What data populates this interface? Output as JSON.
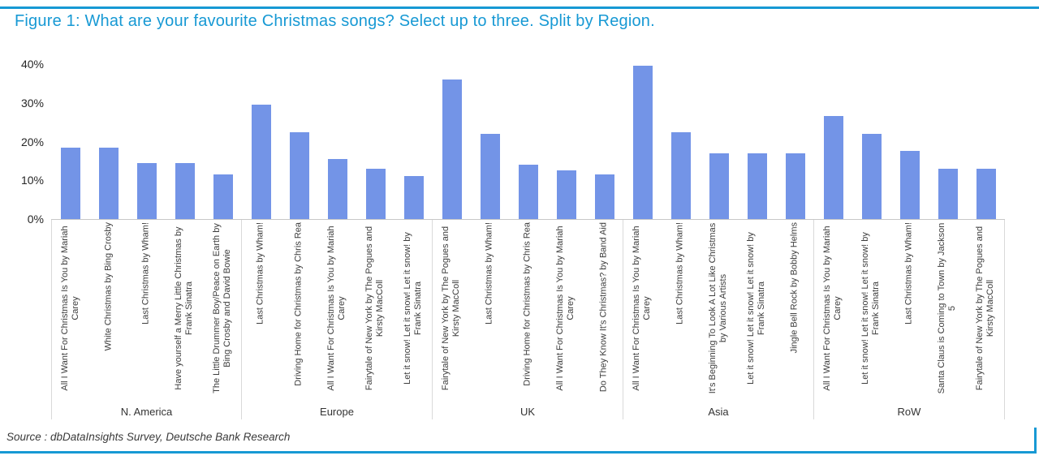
{
  "header": {
    "title": "Figure 1: What are your favourite Christmas songs? Select up to three. Split by Region."
  },
  "footer": {
    "source": "Source : dbDataInsights Survey, Deutsche Bank Research"
  },
  "colors": {
    "accent_blue": "#1799d4",
    "bar_fill": "#7394e7",
    "separator_gray": "#d9d9d9",
    "baseline_gray": "#c8c8c8",
    "text_dark": "#262626"
  },
  "chart_data": {
    "type": "bar",
    "title": "What are your favourite Christmas songs? Select up to three. Split by Region.",
    "xlabel": "",
    "ylabel": "",
    "unit": "%",
    "ylim": [
      0,
      40
    ],
    "yticks": [
      40,
      30,
      20,
      10,
      0
    ],
    "grid": false,
    "legend": null,
    "groups": [
      {
        "region": "N. America",
        "songs": [
          "All I Want For Christmas Is You by Mariah Carey",
          "White Christmas by Bing Crosby",
          "Last Christmas by Wham!",
          "Have yourself a Merry Little Christmas by Frank Sinatra",
          "The Little Drummer Boy/Peace on Earth by Bing Crosby and David Bowie"
        ],
        "values": [
          18.5,
          18.5,
          14.5,
          14.5,
          11.5
        ]
      },
      {
        "region": "Europe",
        "songs": [
          "Last Christmas by Wham!",
          "Driving Home for Christmas by Chris Rea",
          "All I Want For Christmas Is You by Mariah Carey",
          "Fairytale of New York by The Pogues and Kirsty MacColl",
          "Let it snow! Let it snow! Let it snow! by Frank Sinatra"
        ],
        "values": [
          29.5,
          22.5,
          15.5,
          13,
          11
        ]
      },
      {
        "region": "UK",
        "songs": [
          "Fairytale of New York by The Pogues and Kirsty MacColl",
          "Last Christmas by Wham!",
          "Driving Home for Christmas by Chris Rea",
          "All I Want For Christmas Is You by Mariah Carey",
          "Do They Know It's Christmas? by Band Aid"
        ],
        "values": [
          36,
          22,
          14,
          12.5,
          11.5
        ]
      },
      {
        "region": "Asia",
        "songs": [
          "All I Want For Christmas Is You by Mariah Carey",
          "Last Christmas by Wham!",
          "It's Beginning To Look A Lot Like Christmas by Various Artists",
          "Let it snow! Let it snow! Let it snow! by Frank Sinatra",
          "Jingle Bell Rock by Bobby Helms"
        ],
        "values": [
          39.5,
          22.5,
          17,
          17,
          17
        ]
      },
      {
        "region": "RoW",
        "songs": [
          "All I Want For Christmas Is You by Mariah Carey",
          "Let it snow! Let it snow! Let it snow! by Frank Sinatra",
          "Last Christmas by Wham!",
          "Santa Claus is Coming to Town by Jackson 5",
          "Fairytale of New York by The Pogues and Kirsty MacColl"
        ],
        "values": [
          26.5,
          22,
          17.5,
          13,
          13
        ]
      }
    ]
  }
}
